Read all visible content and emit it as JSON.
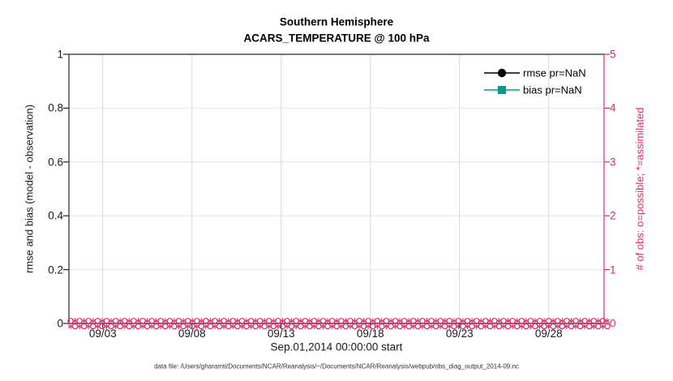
{
  "title": {
    "line1": "Southern Hemisphere",
    "line2": "ACARS_TEMPERATURE @ 100 hPa"
  },
  "axes": {
    "left": {
      "label": "rmse and bias (model - observation)",
      "ticks": [
        "0",
        "0.2",
        "0.4",
        "0.6",
        "0.8",
        "1"
      ],
      "range": [
        0,
        1
      ],
      "color": "#1a1a1a"
    },
    "right": {
      "label": "# of obs: o=possible; *=assimilated",
      "ticks": [
        "0",
        "1",
        "2",
        "3",
        "4",
        "5"
      ],
      "range": [
        0,
        5
      ],
      "color": "#de2a69"
    },
    "x": {
      "label": "Sep.01,2014 00:00:00 start",
      "ticks": [
        "09/03",
        "09/08",
        "09/13",
        "09/18",
        "09/23",
        "09/28"
      ],
      "tick_days": [
        3,
        8,
        13,
        18,
        23,
        28
      ],
      "range_days": [
        1.1,
        31.1
      ]
    }
  },
  "legend": [
    {
      "label": "rmse pr=NaN",
      "color": "#000000",
      "marker": "circle"
    },
    {
      "label": "bias pr=NaN",
      "color": "#0f968c",
      "marker": "square"
    }
  ],
  "caption": "data file: /Users/gharamti/Documents/NCAR/Reanalysis/~/Documents/NCAR/Reanalysis/webpub/obs_diag_output_2014-09.nc",
  "colors": {
    "accent_pink": "#de2a69",
    "teal": "#0f968c",
    "axis": "#262626",
    "grid_vertical": "#d8d8d8",
    "grid_horizontal_pink": "#f6dde7"
  },
  "chart_data": {
    "type": "line",
    "title": "Southern Hemisphere / ACARS_TEMPERATURE @ 100 hPa",
    "xlabel": "Sep.01,2014 00:00:00 start",
    "x_tick_labels": [
      "09/03",
      "09/08",
      "09/13",
      "09/18",
      "09/23",
      "09/28"
    ],
    "x_tick_days": [
      3,
      8,
      13,
      18,
      23,
      28
    ],
    "x_range_days": [
      1.1,
      31.1
    ],
    "left_y": {
      "label": "rmse and bias (model - observation)",
      "range": [
        0,
        1
      ],
      "tick_values": [
        0,
        0.2,
        0.4,
        0.6,
        0.8,
        1
      ]
    },
    "right_y": {
      "label": "# of obs: o=possible; *=assimilated",
      "range": [
        0,
        5
      ],
      "tick_values": [
        0,
        1,
        2,
        3,
        4,
        5
      ]
    },
    "grid": true,
    "legend_position": "upper right, no box",
    "series": [
      {
        "name": "rmse pr=NaN",
        "axis": "left",
        "color": "#000000",
        "marker": "circle",
        "values": "NaN — no curve plotted"
      },
      {
        "name": "bias pr=NaN",
        "axis": "left",
        "color": "#0f968c",
        "marker": "square",
        "values": "NaN — no curve plotted"
      },
      {
        "name": "# of obs possible (o markers)",
        "axis": "right",
        "color": "#de2a69",
        "marker": "o",
        "n_points": 120,
        "cadence": "every 6 h, Sep 01–30 2014",
        "value_at_all_times": 0
      },
      {
        "name": "# of obs assimilated (* markers)",
        "axis": "right",
        "color": "#de2a69",
        "marker": "*",
        "n_points": 120,
        "cadence": "every 6 h, Sep 01–30 2014",
        "value_at_all_times": 0
      }
    ]
  }
}
